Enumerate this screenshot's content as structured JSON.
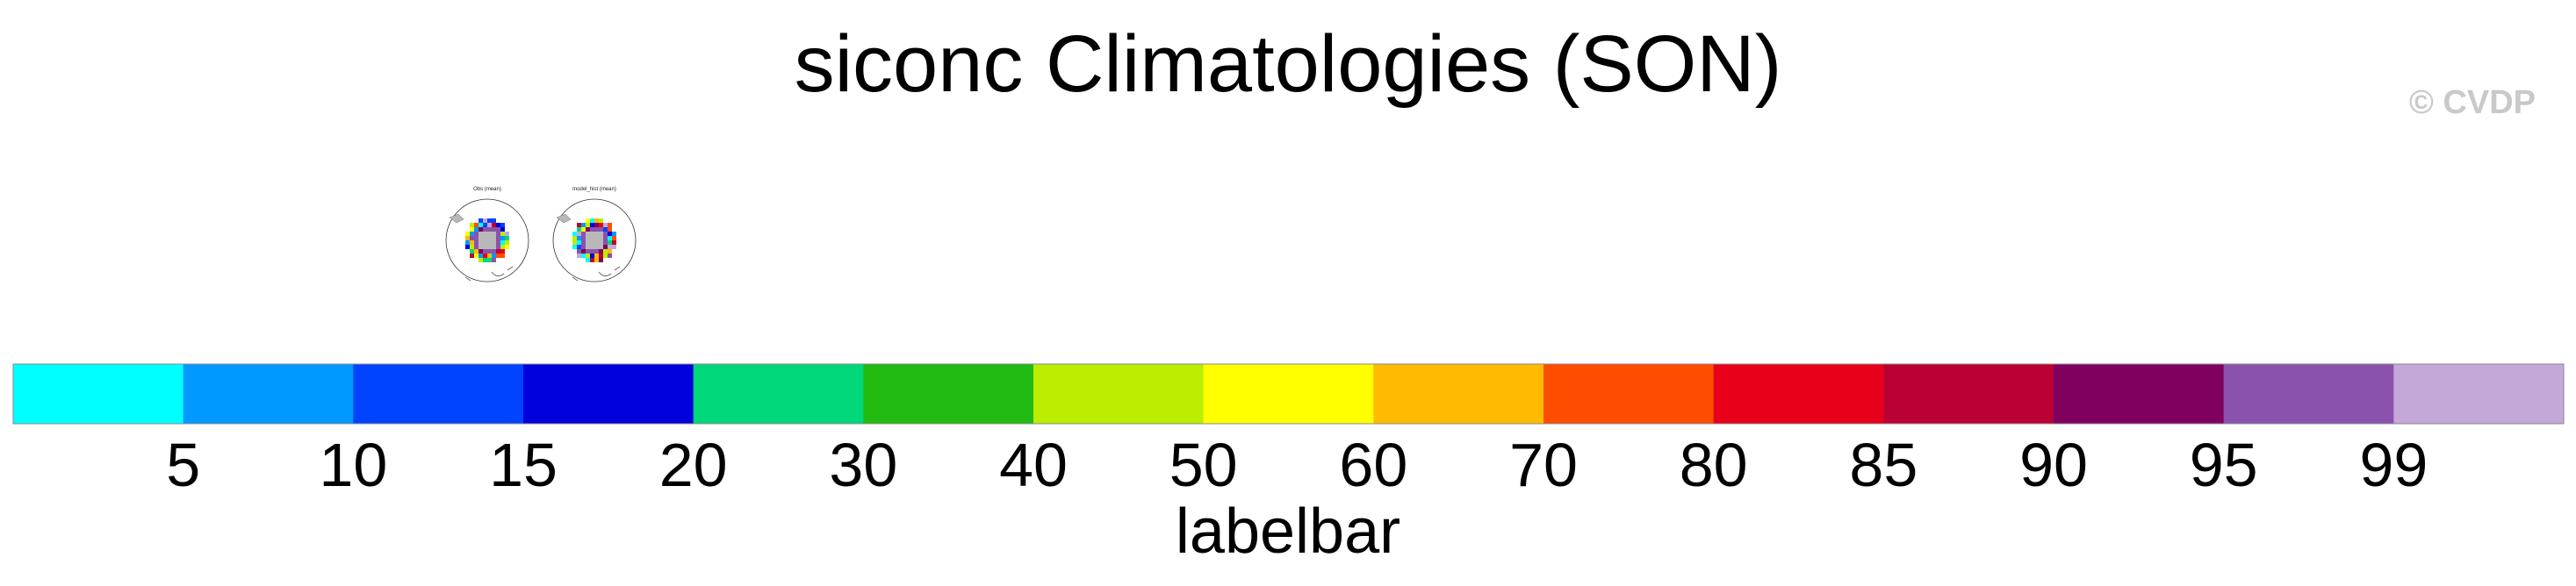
{
  "title": "siconc Climatologies (SON)",
  "watermark": "© CVDP",
  "panels": [
    {
      "label": "Obs (mean)"
    },
    {
      "label": "model_hist (mean)"
    }
  ],
  "chart_data": {
    "type": "heatmap",
    "title": "siconc Climatologies (SON)",
    "colorbar": {
      "label": "labelbar",
      "tick_labels": [
        "5",
        "10",
        "15",
        "20",
        "30",
        "40",
        "50",
        "60",
        "70",
        "80",
        "85",
        "90",
        "95",
        "99"
      ],
      "colors": [
        "#00ffff",
        "#0099ff",
        "#0044ff",
        "#0000dd",
        "#00d67a",
        "#22bb11",
        "#bbee00",
        "#ffff00",
        "#ffbb00",
        "#ff4d00",
        "#e8001a",
        "#bb0033",
        "#800060",
        "#8b52ad",
        "#c4a8d8"
      ]
    },
    "land_color": "#b8b8b8"
  }
}
